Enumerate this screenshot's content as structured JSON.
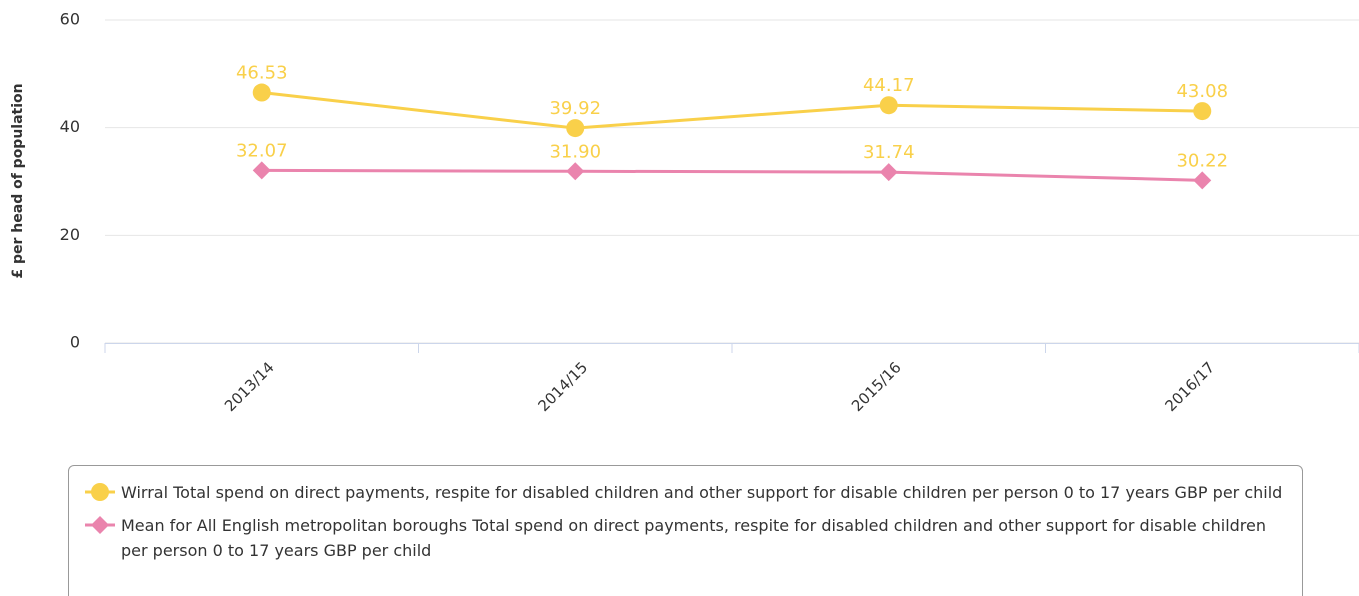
{
  "chart_data": {
    "type": "line",
    "y_label": "£ per head of population",
    "categories": [
      "2013/14",
      "2014/15",
      "2015/16",
      "2016/17"
    ],
    "series": [
      {
        "name": "Wirral Total spend on direct payments, respite for disabled children and other support for disable children per person 0 to 17 years GBP per child",
        "color": "#f9d04a",
        "marker": "circle",
        "values": [
          46.53,
          39.92,
          44.17,
          43.08
        ],
        "value_labels": [
          "46.53",
          "39.92",
          "44.17",
          "43.08"
        ]
      },
      {
        "name": "Mean for All English metropolitan boroughs Total spend on direct payments, respite for disabled children and other support for disable children per person 0 to 17 years GBP per child",
        "color": "#ea84ad",
        "marker": "diamond",
        "values": [
          32.07,
          31.9,
          31.74,
          30.22
        ],
        "value_labels": [
          "32.07",
          "31.90",
          "31.74",
          "30.22"
        ]
      }
    ],
    "ylim": [
      0,
      60
    ],
    "yticks": [
      0,
      20,
      40,
      60
    ],
    "grid": true
  }
}
